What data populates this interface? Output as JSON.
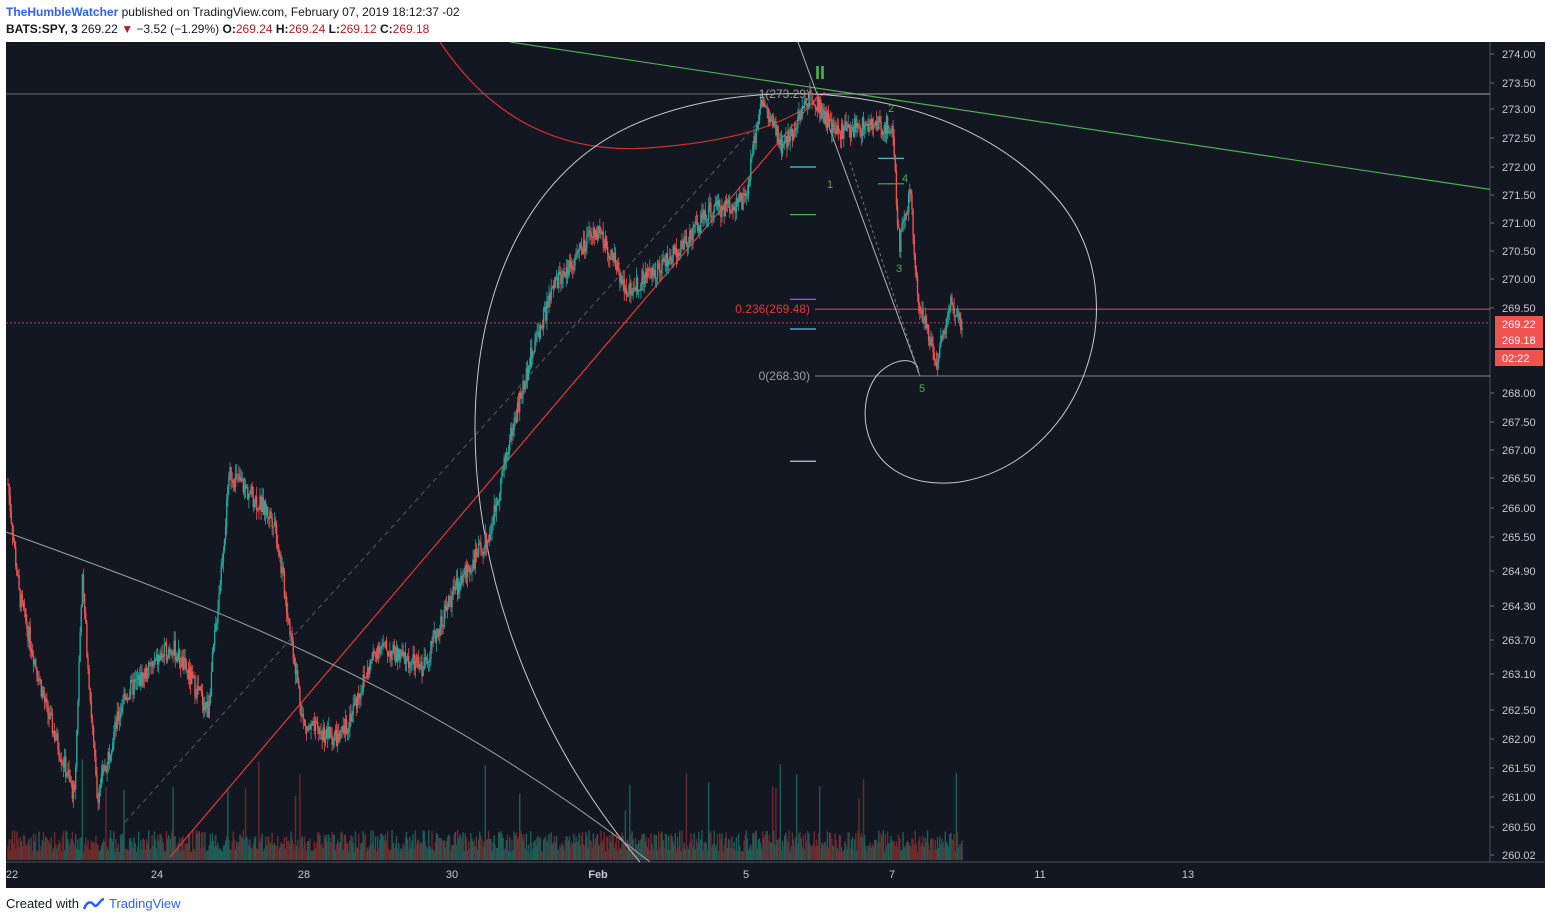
{
  "header": {
    "author": "TheHumbleWatcher",
    "published": "published on TradingView.com, February 07, 2019 18:12:37 -02",
    "symbol": "BATS:SPY, 3",
    "last": "269.22",
    "change": "−3.52 (−1.29%)",
    "o_label": "O:",
    "o": "269.24",
    "h_label": "H:",
    "h": "269.24",
    "l_label": "L:",
    "l": "269.12",
    "c_label": "C:",
    "c": "269.18"
  },
  "footer": {
    "created_with": "Created with",
    "brand": "TradingView"
  },
  "colors": {
    "background": "#131722",
    "up": "#26a69a",
    "down": "#ef5350",
    "wave": "#4caf50",
    "trend": "#e53935",
    "fib": "#b0b0b0"
  },
  "chart_data": {
    "type": "candlestick",
    "symbol": "BATS:SPY",
    "interval": "3",
    "y_ticks": [
      "274.00",
      "273.50",
      "273.00",
      "272.50",
      "272.00",
      "271.50",
      "271.00",
      "270.50",
      "270.00",
      "269.50",
      "269.22",
      "269.18",
      "02:22",
      "268.00",
      "267.50",
      "267.00",
      "266.50",
      "266.00",
      "265.50",
      "264.90",
      "264.30",
      "263.70",
      "263.10",
      "262.50",
      "262.00",
      "261.50",
      "261.00",
      "260.50",
      "260.02"
    ],
    "y_ticks_plain": [
      "274.00",
      "273.50",
      "273.00",
      "272.50",
      "272.00",
      "271.50",
      "271.00",
      "270.50",
      "270.00",
      "269.50",
      "268.00",
      "267.50",
      "267.00",
      "266.50",
      "266.00",
      "265.50",
      "264.90",
      "264.30",
      "263.70",
      "263.10",
      "262.50",
      "262.00",
      "261.50",
      "261.00",
      "260.50",
      "260.02"
    ],
    "price_tags": [
      {
        "label": "269.22",
        "color": "#ef5350"
      },
      {
        "label": "269.18",
        "color": "#ef5350"
      },
      {
        "label": "02:22",
        "color": "#ef5350"
      }
    ],
    "x_ticks": [
      "22",
      "24",
      "28",
      "30",
      "Feb",
      "5",
      "7",
      "11",
      "13"
    ],
    "fib_levels": [
      {
        "label": "1(273.29)",
        "value": 273.29
      },
      {
        "label": "0.236(269.48)",
        "value": 269.48
      },
      {
        "label": "0(268.30)",
        "value": 268.3
      }
    ],
    "wave_labels": [
      "II",
      "1",
      "2",
      "3",
      "4",
      "5"
    ],
    "key_points": [
      {
        "date": "Jan 22",
        "price": 266.4
      },
      {
        "date": "Jan 23",
        "price": 260.9
      },
      {
        "date": "Jan 25",
        "price": 266.6
      },
      {
        "date": "Jan 28",
        "price": 262.0
      },
      {
        "date": "Jan 29",
        "price": 261.9
      },
      {
        "date": "Jan 30",
        "price": 263.5
      },
      {
        "date": "Jan 31",
        "price": 269.8
      },
      {
        "date": "Feb 1",
        "price": 271.1
      },
      {
        "date": "Feb 4",
        "price": 271.4
      },
      {
        "date": "Feb 5",
        "price": 273.3
      },
      {
        "date": "Feb 6",
        "price": 272.2
      },
      {
        "date": "Feb 7",
        "price": 268.3
      },
      {
        "date": "Feb 7 close",
        "price": 269.18
      }
    ]
  }
}
